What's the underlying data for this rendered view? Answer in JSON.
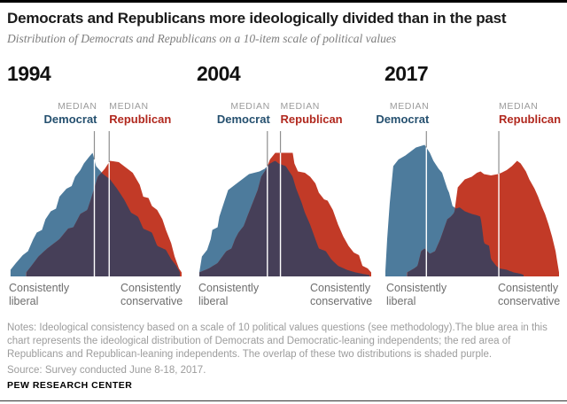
{
  "header": {
    "title": "Democrats and Republicans more ideologically divided than in the past",
    "subtitle": "Distribution of Democrats and Republicans on a 10-item scale of political values"
  },
  "median_labels": {
    "median": "MEDIAN",
    "democrat": "Democrat",
    "republican": "Republican"
  },
  "axis_labels": {
    "left": "Consistently\nliberal",
    "right": "Consistently\nconservative"
  },
  "colors": {
    "democrat_area": "#4d7b9c",
    "republican_area": "#c23a27",
    "overlap_area": "#463f58",
    "democrat_text": "#25506f",
    "republican_text": "#b1281e",
    "median_caption": "#9b9b9b",
    "median_line_above": "#8f8f8f",
    "median_line_inside": "#ffffff",
    "axis_text": "#6e6e6e"
  },
  "chart_data": [
    {
      "type": "area",
      "year": "1994",
      "x_axis": {
        "left_label": "Consistently liberal",
        "right_label": "Consistently conservative"
      },
      "median_democrat_x": 0.5,
      "median_republican_x": 0.585,
      "overlap_note": "overlap of the two distributions shaded purple",
      "series": [
        {
          "name": "Democrats and Democratic-leaning independents",
          "color_key": "democrat_area",
          "points": [
            [
              0.02,
              0.05
            ],
            [
              0.05,
              0.1
            ],
            [
              0.09,
              0.16
            ],
            [
              0.12,
              0.19
            ],
            [
              0.15,
              0.28
            ],
            [
              0.17,
              0.33
            ],
            [
              0.2,
              0.35
            ],
            [
              0.22,
              0.43
            ],
            [
              0.25,
              0.49
            ],
            [
              0.28,
              0.51
            ],
            [
              0.3,
              0.6
            ],
            [
              0.34,
              0.66
            ],
            [
              0.37,
              0.68
            ],
            [
              0.39,
              0.75
            ],
            [
              0.42,
              0.8
            ],
            [
              0.44,
              0.85
            ],
            [
              0.47,
              0.9
            ],
            [
              0.49,
              0.93
            ],
            [
              0.51,
              0.83
            ],
            [
              0.55,
              0.77
            ],
            [
              0.59,
              0.73
            ],
            [
              0.63,
              0.66
            ],
            [
              0.67,
              0.58
            ],
            [
              0.71,
              0.48
            ],
            [
              0.75,
              0.45
            ],
            [
              0.78,
              0.36
            ],
            [
              0.83,
              0.33
            ],
            [
              0.86,
              0.23
            ],
            [
              0.91,
              0.2
            ],
            [
              0.94,
              0.13
            ],
            [
              0.97,
              0.08
            ],
            [
              0.99,
              0.03
            ]
          ]
        },
        {
          "name": "Republicans and Republican-leaning independents",
          "color_key": "republican_area",
          "points": [
            [
              0.11,
              0.03
            ],
            [
              0.14,
              0.08
            ],
            [
              0.18,
              0.15
            ],
            [
              0.23,
              0.21
            ],
            [
              0.25,
              0.23
            ],
            [
              0.3,
              0.28
            ],
            [
              0.35,
              0.36
            ],
            [
              0.38,
              0.37
            ],
            [
              0.42,
              0.47
            ],
            [
              0.46,
              0.5
            ],
            [
              0.48,
              0.58
            ],
            [
              0.52,
              0.75
            ],
            [
              0.56,
              0.81
            ],
            [
              0.59,
              0.87
            ],
            [
              0.64,
              0.86
            ],
            [
              0.69,
              0.81
            ],
            [
              0.72,
              0.78
            ],
            [
              0.76,
              0.69
            ],
            [
              0.78,
              0.6
            ],
            [
              0.81,
              0.59
            ],
            [
              0.83,
              0.53
            ],
            [
              0.86,
              0.5
            ],
            [
              0.89,
              0.43
            ],
            [
              0.91,
              0.35
            ],
            [
              0.94,
              0.25
            ],
            [
              0.96,
              0.15
            ],
            [
              0.985,
              0.06
            ],
            [
              1.0,
              0.03
            ]
          ]
        }
      ]
    },
    {
      "type": "area",
      "year": "2004",
      "x_axis": {
        "left_label": "Consistently liberal",
        "right_label": "Consistently conservative"
      },
      "median_democrat_x": 0.405,
      "median_republican_x": 0.48,
      "overlap_note": "overlap of the two distributions shaded purple",
      "series": [
        {
          "name": "Democrats and Democratic-leaning independents",
          "color_key": "democrat_area",
          "points": [
            [
              0.015,
              0.03
            ],
            [
              0.03,
              0.15
            ],
            [
              0.06,
              0.2
            ],
            [
              0.08,
              0.28
            ],
            [
              0.09,
              0.35
            ],
            [
              0.12,
              0.37
            ],
            [
              0.13,
              0.45
            ],
            [
              0.16,
              0.57
            ],
            [
              0.18,
              0.65
            ],
            [
              0.22,
              0.69
            ],
            [
              0.26,
              0.73
            ],
            [
              0.3,
              0.77
            ],
            [
              0.36,
              0.79
            ],
            [
              0.39,
              0.81
            ],
            [
              0.42,
              0.85
            ],
            [
              0.45,
              0.87
            ],
            [
              0.47,
              0.85
            ],
            [
              0.51,
              0.83
            ],
            [
              0.55,
              0.75
            ],
            [
              0.57,
              0.66
            ],
            [
              0.6,
              0.56
            ],
            [
              0.62,
              0.48
            ],
            [
              0.65,
              0.39
            ],
            [
              0.68,
              0.28
            ],
            [
              0.7,
              0.21
            ],
            [
              0.74,
              0.19
            ],
            [
              0.77,
              0.13
            ],
            [
              0.81,
              0.08
            ],
            [
              0.86,
              0.05
            ],
            [
              0.91,
              0.03
            ],
            [
              0.99,
              0.01
            ]
          ]
        },
        {
          "name": "Republicans and Republican-leaning independents",
          "color_key": "republican_area",
          "points": [
            [
              0.015,
              0.03
            ],
            [
              0.07,
              0.06
            ],
            [
              0.12,
              0.1
            ],
            [
              0.17,
              0.19
            ],
            [
              0.2,
              0.21
            ],
            [
              0.22,
              0.28
            ],
            [
              0.24,
              0.33
            ],
            [
              0.27,
              0.38
            ],
            [
              0.29,
              0.45
            ],
            [
              0.32,
              0.55
            ],
            [
              0.35,
              0.65
            ],
            [
              0.37,
              0.75
            ],
            [
              0.4,
              0.81
            ],
            [
              0.42,
              0.88
            ],
            [
              0.45,
              0.93
            ],
            [
              0.55,
              0.93
            ],
            [
              0.56,
              0.85
            ],
            [
              0.58,
              0.79
            ],
            [
              0.62,
              0.78
            ],
            [
              0.65,
              0.75
            ],
            [
              0.68,
              0.7
            ],
            [
              0.7,
              0.63
            ],
            [
              0.73,
              0.58
            ],
            [
              0.75,
              0.57
            ],
            [
              0.78,
              0.5
            ],
            [
              0.81,
              0.39
            ],
            [
              0.84,
              0.3
            ],
            [
              0.87,
              0.23
            ],
            [
              0.9,
              0.18
            ],
            [
              0.93,
              0.16
            ],
            [
              0.95,
              0.08
            ],
            [
              0.98,
              0.06
            ],
            [
              1.0,
              0.03
            ]
          ]
        }
      ]
    },
    {
      "type": "area",
      "year": "2017",
      "x_axis": {
        "left_label": "Consistently liberal",
        "right_label": "Consistently conservative"
      },
      "median_democrat_x": 0.24,
      "median_republican_x": 0.655,
      "overlap_note": "overlap of the two distributions shaded purple",
      "series": [
        {
          "name": "Democrats and Democratic-leaning independents",
          "color_key": "democrat_area",
          "points": [
            [
              0.005,
              0.04
            ],
            [
              0.015,
              0.28
            ],
            [
              0.03,
              0.55
            ],
            [
              0.05,
              0.83
            ],
            [
              0.08,
              0.88
            ],
            [
              0.12,
              0.91
            ],
            [
              0.16,
              0.95
            ],
            [
              0.18,
              0.97
            ],
            [
              0.23,
              0.99
            ],
            [
              0.26,
              0.93
            ],
            [
              0.28,
              0.87
            ],
            [
              0.31,
              0.81
            ],
            [
              0.33,
              0.78
            ],
            [
              0.36,
              0.66
            ],
            [
              0.37,
              0.63
            ],
            [
              0.39,
              0.53
            ],
            [
              0.41,
              0.51
            ],
            [
              0.43,
              0.52
            ],
            [
              0.46,
              0.49
            ],
            [
              0.5,
              0.47
            ],
            [
              0.53,
              0.46
            ],
            [
              0.55,
              0.45
            ],
            [
              0.56,
              0.36
            ],
            [
              0.57,
              0.25
            ],
            [
              0.6,
              0.23
            ],
            [
              0.61,
              0.13
            ],
            [
              0.64,
              0.08
            ],
            [
              0.66,
              0.06
            ],
            [
              0.7,
              0.05
            ],
            [
              0.74,
              0.03
            ],
            [
              0.78,
              0.02
            ],
            [
              0.8,
              0.01
            ]
          ]
        },
        {
          "name": "Republicans and Republican-leaning independents",
          "color_key": "republican_area",
          "points": [
            [
              0.13,
              0.03
            ],
            [
              0.17,
              0.06
            ],
            [
              0.19,
              0.08
            ],
            [
              0.21,
              0.19
            ],
            [
              0.23,
              0.21
            ],
            [
              0.26,
              0.17
            ],
            [
              0.29,
              0.19
            ],
            [
              0.32,
              0.28
            ],
            [
              0.36,
              0.43
            ],
            [
              0.38,
              0.45
            ],
            [
              0.4,
              0.48
            ],
            [
              0.42,
              0.67
            ],
            [
              0.46,
              0.73
            ],
            [
              0.5,
              0.75
            ],
            [
              0.53,
              0.78
            ],
            [
              0.55,
              0.79
            ],
            [
              0.57,
              0.77
            ],
            [
              0.61,
              0.76
            ],
            [
              0.65,
              0.77
            ],
            [
              0.67,
              0.78
            ],
            [
              0.7,
              0.8
            ],
            [
              0.73,
              0.83
            ],
            [
              0.76,
              0.87
            ],
            [
              0.78,
              0.85
            ],
            [
              0.81,
              0.79
            ],
            [
              0.83,
              0.73
            ],
            [
              0.86,
              0.66
            ],
            [
              0.88,
              0.6
            ],
            [
              0.9,
              0.53
            ],
            [
              0.92,
              0.47
            ],
            [
              0.94,
              0.39
            ],
            [
              0.96,
              0.3
            ],
            [
              0.98,
              0.19
            ],
            [
              0.99,
              0.11
            ],
            [
              1.0,
              0.03
            ]
          ]
        }
      ]
    }
  ],
  "footer": {
    "notes": "Notes: Ideological consistency based on a scale of 10 political values questions (see methodology).The blue area in this chart represents the ideological distribution of Democrats and Democratic-leaning independents; the red area of Republicans and Republican-leaning independents. The overlap of these two distributions is shaded purple.",
    "source": "Source: Survey conducted June 8-18, 2017.",
    "brand": "PEW RESEARCH CENTER"
  }
}
